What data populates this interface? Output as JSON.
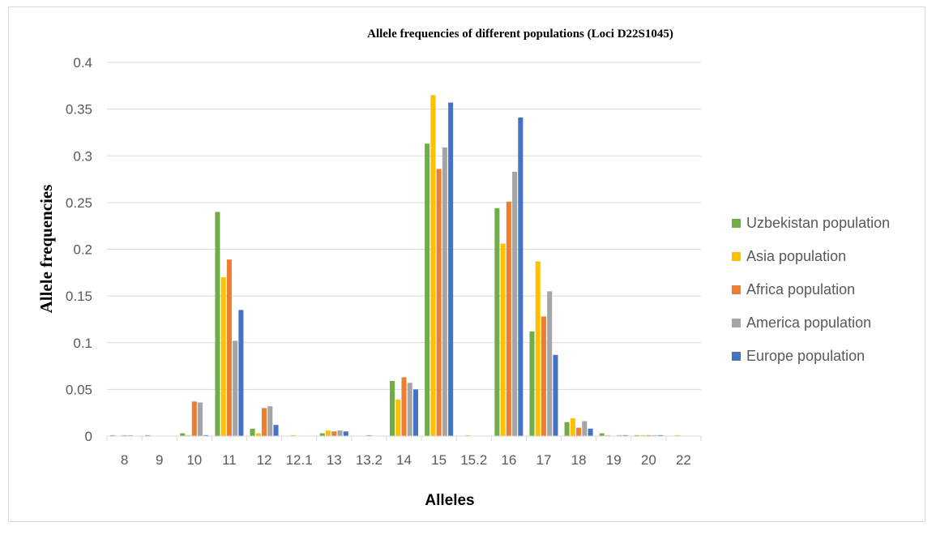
{
  "chart_data": {
    "type": "bar",
    "title": "Allele frequencies  of different populations (Loci D22S1045)",
    "xlabel": "Alleles",
    "ylabel": "Allele frequencies",
    "ylim": [
      0,
      0.4
    ],
    "yticks": [
      "0",
      "0.05",
      "0.1",
      "0.15",
      "0.2",
      "0.25",
      "0.3",
      "0.35",
      "0.4"
    ],
    "grid": true,
    "legend_position": "right",
    "categories": [
      "8",
      "9",
      "10",
      "11",
      "12",
      "12.1",
      "13",
      "13.2",
      "14",
      "15",
      "15.2",
      "16",
      "17",
      "18",
      "19",
      "20",
      "22"
    ],
    "series": [
      {
        "name": "Uzbekistan population",
        "color": "#70ad47",
        "values": [
          0.001,
          0.001,
          0.003,
          0.24,
          0.008,
          0,
          0.003,
          0,
          0.059,
          0.313,
          0,
          0.244,
          0.112,
          0.015,
          0.003,
          0.001,
          0
        ]
      },
      {
        "name": "Asia population",
        "color": "#ffc000",
        "values": [
          0,
          0,
          0.001,
          0.17,
          0.003,
          0.001,
          0.006,
          0,
          0.039,
          0.365,
          0.001,
          0.206,
          0.187,
          0.019,
          0.001,
          0.001,
          0.001
        ]
      },
      {
        "name": "Africa population",
        "color": "#ed7d31",
        "values": [
          0.001,
          0,
          0.037,
          0.189,
          0.03,
          0,
          0.005,
          0.001,
          0.063,
          0.286,
          0,
          0.251,
          0.128,
          0.009,
          0,
          0.001,
          0
        ]
      },
      {
        "name": "America population",
        "color": "#a5a5a5",
        "values": [
          0.001,
          0,
          0.036,
          0.102,
          0.032,
          0,
          0.006,
          0,
          0.057,
          0.309,
          0,
          0.283,
          0.155,
          0.016,
          0.001,
          0.001,
          0
        ]
      },
      {
        "name": "Europe population",
        "color": "#4472c4",
        "values": [
          0,
          0,
          0.001,
          0.135,
          0.012,
          0,
          0.005,
          0,
          0.05,
          0.357,
          0,
          0.341,
          0.087,
          0.008,
          0.001,
          0.001,
          0
        ]
      }
    ]
  }
}
